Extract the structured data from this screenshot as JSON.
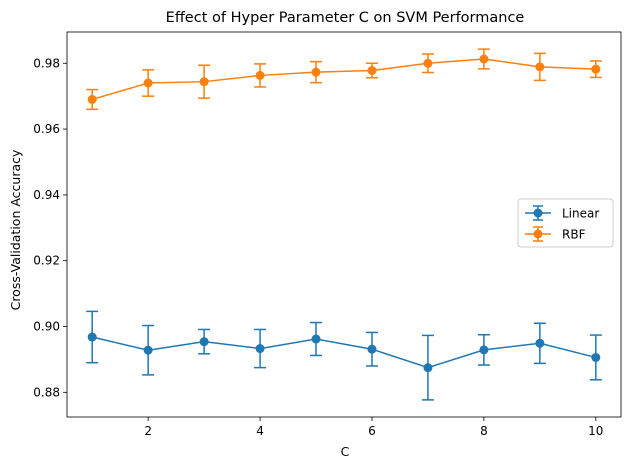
{
  "chart_data": {
    "type": "line",
    "title": "Effect of Hyper Parameter C on SVM Performance",
    "xlabel": "C",
    "ylabel": "Cross-Validation Accuracy",
    "xlim": [
      0.55,
      10.45
    ],
    "ylim": [
      0.8725,
      0.9895
    ],
    "xticks": [
      2,
      4,
      6,
      8,
      10
    ],
    "yticks": [
      0.88,
      0.9,
      0.92,
      0.94,
      0.96,
      0.98
    ],
    "ytick_labels": [
      "0.88",
      "0.90",
      "0.92",
      "0.94",
      "0.96",
      "0.98"
    ],
    "grid": false,
    "legend_position": "center-right",
    "x": [
      1,
      2,
      3,
      4,
      5,
      6,
      7,
      8,
      9,
      10
    ],
    "series": [
      {
        "name": "Linear",
        "color": "#1f77b4",
        "values": [
          0.8968,
          0.8928,
          0.8954,
          0.8933,
          0.8962,
          0.8931,
          0.8875,
          0.8929,
          0.8949,
          0.8906
        ],
        "errors": [
          0.0078,
          0.0075,
          0.0037,
          0.0058,
          0.005,
          0.0051,
          0.0098,
          0.0046,
          0.0061,
          0.0068
        ]
      },
      {
        "name": "RBF",
        "color": "#ff7f0e",
        "values": [
          0.969,
          0.974,
          0.9744,
          0.9763,
          0.9773,
          0.9778,
          0.98,
          0.9813,
          0.9789,
          0.9782
        ],
        "errors": [
          0.003,
          0.004,
          0.005,
          0.0035,
          0.0032,
          0.0022,
          0.0028,
          0.003,
          0.0041,
          0.0025
        ]
      }
    ]
  }
}
